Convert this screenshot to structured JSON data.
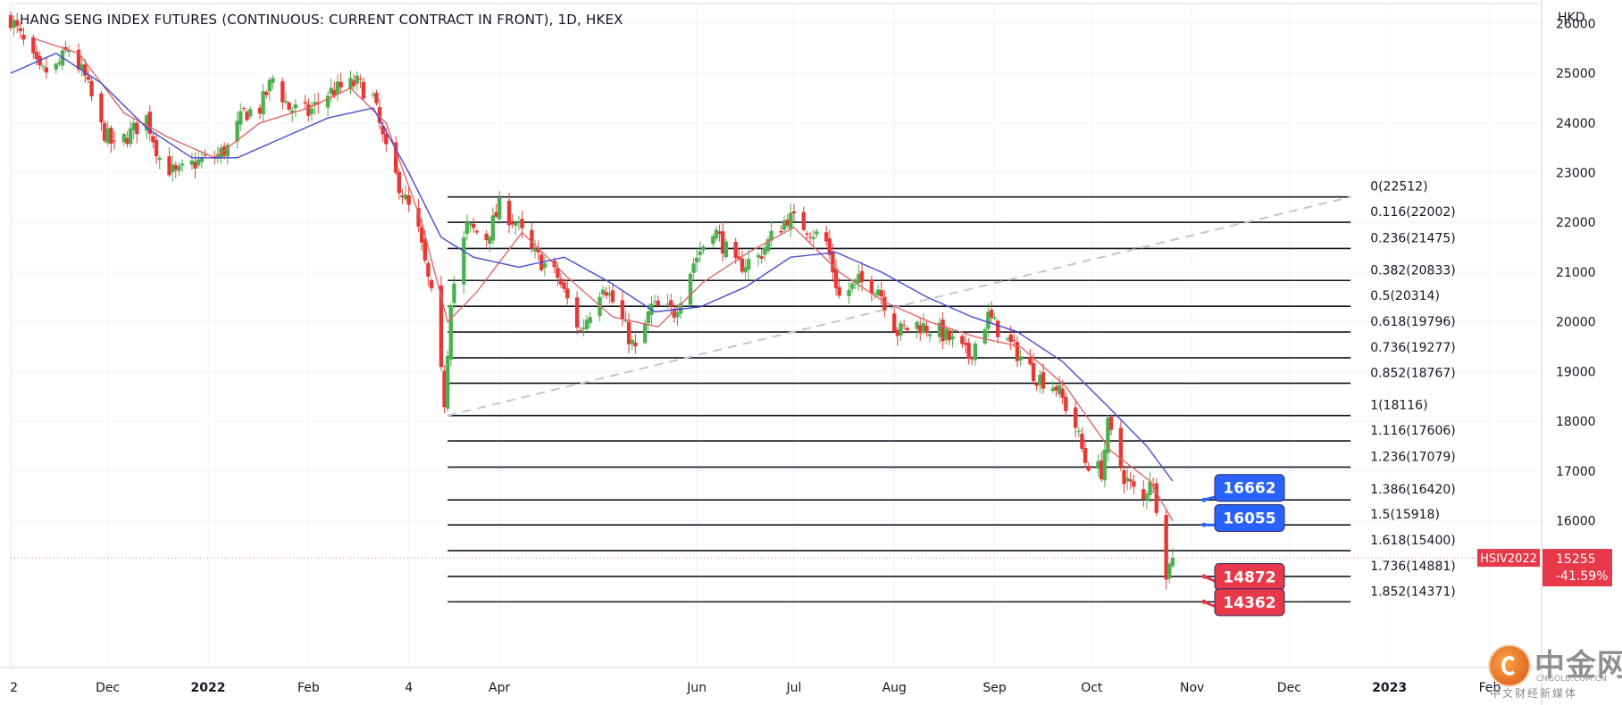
{
  "chart_data": {
    "type": "candlestick",
    "title": "HANG SENG INDEX FUTURES (CONTINUOUS: CURRENT CONTRACT IN FRONT), 1D, HKEX",
    "y_unit": "HKD",
    "y_ticks": [
      26000,
      25000,
      24000,
      23000,
      22000,
      21000,
      20000,
      19000,
      18000,
      17000,
      16000
    ],
    "ylim": [
      13050,
      26400
    ],
    "xlim": [
      "2021-11-01",
      "2023-02-17"
    ],
    "x_ticks": [
      {
        "date": "2021-11-02",
        "label": "2",
        "bold": false
      },
      {
        "date": "2021-12-01",
        "label": "Dec",
        "bold": false
      },
      {
        "date": "2022-01-01",
        "label": "2022",
        "bold": true
      },
      {
        "date": "2022-02-01",
        "label": "Feb",
        "bold": false
      },
      {
        "date": "2022-03-04",
        "label": "4",
        "bold": false
      },
      {
        "date": "2022-04-01",
        "label": "Apr",
        "bold": false
      },
      {
        "date": "2022-06-01",
        "label": "Jun",
        "bold": false
      },
      {
        "date": "2022-07-01",
        "label": "Jul",
        "bold": false
      },
      {
        "date": "2022-08-01",
        "label": "Aug",
        "bold": false
      },
      {
        "date": "2022-09-01",
        "label": "Sep",
        "bold": false
      },
      {
        "date": "2022-10-01",
        "label": "Oct",
        "bold": false
      },
      {
        "date": "2022-11-01",
        "label": "Nov",
        "bold": false
      },
      {
        "date": "2022-12-01",
        "label": "Dec",
        "bold": false
      },
      {
        "date": "2023-01-01",
        "label": "2023",
        "bold": true
      },
      {
        "date": "2023-02-01",
        "label": "Feb",
        "bold": false
      }
    ],
    "grid": true,
    "price_path": [
      [
        "2021-11-01",
        26100
      ],
      [
        "2021-11-05",
        25600
      ],
      [
        "2021-11-10",
        25000
      ],
      [
        "2021-11-15",
        25100
      ],
      [
        "2021-11-19",
        25500
      ],
      [
        "2021-11-24",
        24900
      ],
      [
        "2021-11-29",
        23900
      ],
      [
        "2021-12-03",
        23500
      ],
      [
        "2021-12-08",
        23800
      ],
      [
        "2021-12-13",
        24100
      ],
      [
        "2021-12-17",
        23300
      ],
      [
        "2021-12-22",
        22950
      ],
      [
        "2021-12-28",
        23200
      ],
      [
        "2022-01-03",
        23300
      ],
      [
        "2022-01-07",
        23500
      ],
      [
        "2022-01-12",
        24200
      ],
      [
        "2022-01-17",
        24300
      ],
      [
        "2022-01-21",
        24900
      ],
      [
        "2022-01-26",
        24300
      ],
      [
        "2022-02-01",
        24200
      ],
      [
        "2022-02-07",
        24600
      ],
      [
        "2022-02-11",
        24700
      ],
      [
        "2022-02-16",
        24800
      ],
      [
        "2022-02-21",
        24500
      ],
      [
        "2022-02-25",
        23400
      ],
      [
        "2022-03-02",
        22600
      ],
      [
        "2022-03-07",
        21800
      ],
      [
        "2022-03-11",
        20500
      ],
      [
        "2022-03-15",
        18400
      ],
      [
        "2022-03-17",
        20500
      ],
      [
        "2022-03-22",
        21900
      ],
      [
        "2022-03-28",
        21700
      ],
      [
        "2022-04-01",
        22300
      ],
      [
        "2022-04-06",
        22000
      ],
      [
        "2022-04-11",
        21400
      ],
      [
        "2022-04-19",
        20900
      ],
      [
        "2022-04-26",
        19800
      ],
      [
        "2022-05-03",
        20800
      ],
      [
        "2022-05-09",
        20000
      ],
      [
        "2022-05-13",
        19400
      ],
      [
        "2022-05-18",
        20300
      ],
      [
        "2022-05-25",
        20200
      ],
      [
        "2022-05-31",
        21200
      ],
      [
        "2022-06-06",
        21900
      ],
      [
        "2022-06-13",
        21100
      ],
      [
        "2022-06-20",
        21300
      ],
      [
        "2022-06-24",
        21700
      ],
      [
        "2022-06-29",
        22100
      ],
      [
        "2022-07-05",
        21900
      ],
      [
        "2022-07-11",
        21600
      ],
      [
        "2022-07-15",
        20500
      ],
      [
        "2022-07-21",
        20800
      ],
      [
        "2022-07-27",
        20700
      ],
      [
        "2022-08-02",
        19800
      ],
      [
        "2022-08-08",
        19950
      ],
      [
        "2022-08-15",
        19800
      ],
      [
        "2022-08-19",
        19600
      ],
      [
        "2022-08-24",
        19300
      ],
      [
        "2022-08-30",
        20100
      ],
      [
        "2022-09-05",
        19600
      ],
      [
        "2022-09-09",
        19300
      ],
      [
        "2022-09-14",
        18900
      ],
      [
        "2022-09-20",
        18700
      ],
      [
        "2022-09-26",
        17900
      ],
      [
        "2022-09-29",
        17200
      ],
      [
        "2022-10-04",
        17000
      ],
      [
        "2022-10-06",
        17900
      ],
      [
        "2022-10-11",
        16900
      ],
      [
        "2022-10-14",
        16600
      ],
      [
        "2022-10-17",
        16400
      ],
      [
        "2022-10-19",
        16900
      ],
      [
        "2022-10-21",
        16350
      ],
      [
        "2022-10-24",
        15000
      ],
      [
        "2022-10-25",
        15100
      ],
      [
        "2022-10-26",
        15255
      ]
    ],
    "moving_averages": [
      {
        "color": "#e06666",
        "points": [
          [
            "2021-11-08",
            25700
          ],
          [
            "2021-11-22",
            25400
          ],
          [
            "2021-12-06",
            24200
          ],
          [
            "2021-12-20",
            23700
          ],
          [
            "2022-01-03",
            23300
          ],
          [
            "2022-01-17",
            24000
          ],
          [
            "2022-02-01",
            24300
          ],
          [
            "2022-02-14",
            24700
          ],
          [
            "2022-02-25",
            24000
          ],
          [
            "2022-03-08",
            22000
          ],
          [
            "2022-03-16",
            20000
          ],
          [
            "2022-03-25",
            20600
          ],
          [
            "2022-04-08",
            21800
          ],
          [
            "2022-04-22",
            20900
          ],
          [
            "2022-05-06",
            20100
          ],
          [
            "2022-05-20",
            19900
          ],
          [
            "2022-06-03",
            20800
          ],
          [
            "2022-06-17",
            21400
          ],
          [
            "2022-07-01",
            21900
          ],
          [
            "2022-07-15",
            21000
          ],
          [
            "2022-07-29",
            20400
          ],
          [
            "2022-08-12",
            20000
          ],
          [
            "2022-08-26",
            19700
          ],
          [
            "2022-09-09",
            19500
          ],
          [
            "2022-09-23",
            18700
          ],
          [
            "2022-10-07",
            17400
          ],
          [
            "2022-10-19",
            16800
          ],
          [
            "2022-10-26",
            16000
          ]
        ]
      },
      {
        "color": "#4a4ad0",
        "points": [
          [
            "2021-11-01",
            25000
          ],
          [
            "2021-11-15",
            25400
          ],
          [
            "2021-11-29",
            24800
          ],
          [
            "2021-12-13",
            23900
          ],
          [
            "2021-12-27",
            23300
          ],
          [
            "2022-01-10",
            23300
          ],
          [
            "2022-01-24",
            23700
          ],
          [
            "2022-02-07",
            24100
          ],
          [
            "2022-02-21",
            24300
          ],
          [
            "2022-03-04",
            23000
          ],
          [
            "2022-03-14",
            21700
          ],
          [
            "2022-03-24",
            21300
          ],
          [
            "2022-04-07",
            21100
          ],
          [
            "2022-04-21",
            21300
          ],
          [
            "2022-05-05",
            20800
          ],
          [
            "2022-05-19",
            20200
          ],
          [
            "2022-06-02",
            20300
          ],
          [
            "2022-06-16",
            20700
          ],
          [
            "2022-06-30",
            21300
          ],
          [
            "2022-07-14",
            21400
          ],
          [
            "2022-07-28",
            21000
          ],
          [
            "2022-08-11",
            20500
          ],
          [
            "2022-08-25",
            20100
          ],
          [
            "2022-09-08",
            19800
          ],
          [
            "2022-09-22",
            19200
          ],
          [
            "2022-10-06",
            18300
          ],
          [
            "2022-10-18",
            17500
          ],
          [
            "2022-10-26",
            16800
          ]
        ]
      }
    ],
    "fib_start": "2022-03-16",
    "fib_end": "2022-12-20",
    "fibonacci": [
      {
        "label": "0(22512)",
        "value": 22512
      },
      {
        "label": "0.116(22002)",
        "value": 22002
      },
      {
        "label": "0.236(21475)",
        "value": 21475
      },
      {
        "label": "0.382(20833)",
        "value": 20833
      },
      {
        "label": "0.5(20314)",
        "value": 20314
      },
      {
        "label": "0.618(19796)",
        "value": 19796
      },
      {
        "label": "0.736(19277)",
        "value": 19277
      },
      {
        "label": "0.852(18767)",
        "value": 18767
      },
      {
        "label": "1(18116)",
        "value": 18116
      },
      {
        "label": "1.116(17606)",
        "value": 17606
      },
      {
        "label": "1.236(17079)",
        "value": 17079
      },
      {
        "label": "1.386(16420)",
        "value": 16420
      },
      {
        "label": "1.5(15918)",
        "value": 15918
      },
      {
        "label": "1.618(15400)",
        "value": 15400
      },
      {
        "label": "1.736(14881)",
        "value": 14881
      },
      {
        "label": "1.852(14371)",
        "value": 14371
      }
    ],
    "trendline": {
      "from": [
        "2022-03-16",
        18116
      ],
      "to": [
        "2022-12-20",
        22512
      ]
    },
    "callouts": [
      {
        "text": "16662",
        "color": "#2962ff",
        "date": "2022-11-08",
        "value": 16662,
        "anchor_value": 16420
      },
      {
        "text": "16055",
        "color": "#2962ff",
        "date": "2022-11-08",
        "value": 16055,
        "anchor_value": 15918
      },
      {
        "text": "14872",
        "color": "#e8394b",
        "date": "2022-11-08",
        "value": 14872,
        "anchor_value": 14881
      },
      {
        "text": "14362",
        "color": "#e8394b",
        "date": "2022-11-08",
        "value": 14362,
        "anchor_value": 14371
      }
    ],
    "last_price": {
      "symbol": "HSIV2022",
      "value": 15255,
      "change": "-41.59%",
      "color": "#e8394b"
    }
  },
  "watermark": {
    "name": "中金网",
    "domain": "CNGOLD.COM.CN",
    "tagline": "中文财经新媒体"
  }
}
